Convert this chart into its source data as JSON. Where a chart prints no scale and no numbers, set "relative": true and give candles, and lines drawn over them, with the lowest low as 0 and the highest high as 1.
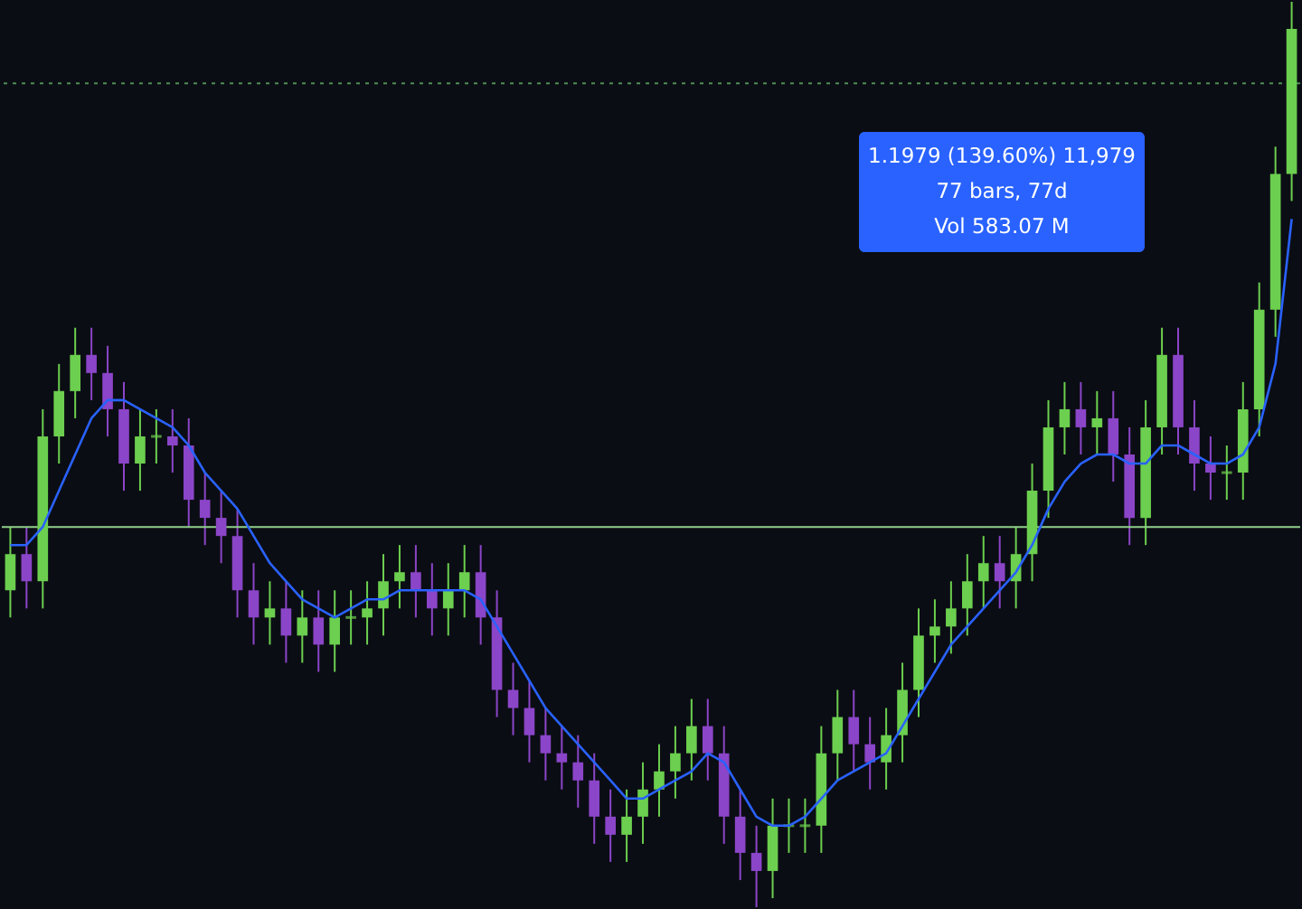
{
  "chart_data": {
    "type": "candlestick",
    "relative": true,
    "categories": [
      null,
      null,
      null,
      null,
      null,
      null,
      null,
      null,
      null,
      null,
      null,
      null,
      null,
      null,
      null,
      null,
      null,
      null,
      null,
      null,
      null,
      null,
      null,
      null,
      null,
      null,
      null,
      null,
      null,
      null,
      null,
      null,
      null,
      null,
      null,
      null,
      null,
      null,
      null,
      null,
      null,
      null,
      null,
      null,
      null,
      null,
      null,
      null,
      null,
      null,
      null,
      null,
      null,
      null,
      null,
      null,
      null,
      null,
      null,
      null,
      null,
      null,
      null,
      null,
      null,
      null,
      null,
      null,
      null,
      null,
      null,
      null,
      null,
      null,
      null,
      null,
      null,
      null,
      null,
      null
    ],
    "ohlc": [
      [
        0.35,
        0.42,
        0.32,
        0.39
      ],
      [
        0.39,
        0.42,
        0.33,
        0.36
      ],
      [
        0.36,
        0.55,
        0.33,
        0.52
      ],
      [
        0.52,
        0.6,
        0.49,
        0.57
      ],
      [
        0.57,
        0.64,
        0.54,
        0.61
      ],
      [
        0.61,
        0.64,
        0.56,
        0.59
      ],
      [
        0.59,
        0.62,
        0.52,
        0.55
      ],
      [
        0.55,
        0.58,
        0.46,
        0.49
      ],
      [
        0.49,
        0.55,
        0.46,
        0.52
      ],
      [
        0.52,
        0.55,
        0.49,
        0.52
      ],
      [
        0.52,
        0.55,
        0.48,
        0.51
      ],
      [
        0.51,
        0.54,
        0.42,
        0.45
      ],
      [
        0.45,
        0.48,
        0.4,
        0.43
      ],
      [
        0.43,
        0.46,
        0.38,
        0.41
      ],
      [
        0.41,
        0.44,
        0.32,
        0.35
      ],
      [
        0.35,
        0.38,
        0.29,
        0.32
      ],
      [
        0.32,
        0.36,
        0.29,
        0.33
      ],
      [
        0.33,
        0.36,
        0.27,
        0.3
      ],
      [
        0.3,
        0.35,
        0.27,
        0.32
      ],
      [
        0.32,
        0.35,
        0.26,
        0.29
      ],
      [
        0.29,
        0.35,
        0.26,
        0.32
      ],
      [
        0.32,
        0.35,
        0.29,
        0.32
      ],
      [
        0.32,
        0.36,
        0.29,
        0.33
      ],
      [
        0.33,
        0.39,
        0.3,
        0.36
      ],
      [
        0.36,
        0.4,
        0.33,
        0.37
      ],
      [
        0.37,
        0.4,
        0.32,
        0.35
      ],
      [
        0.35,
        0.38,
        0.3,
        0.33
      ],
      [
        0.33,
        0.38,
        0.3,
        0.35
      ],
      [
        0.35,
        0.4,
        0.32,
        0.37
      ],
      [
        0.37,
        0.4,
        0.29,
        0.32
      ],
      [
        0.32,
        0.35,
        0.21,
        0.24
      ],
      [
        0.24,
        0.27,
        0.19,
        0.22
      ],
      [
        0.22,
        0.25,
        0.16,
        0.19
      ],
      [
        0.19,
        0.22,
        0.14,
        0.17
      ],
      [
        0.17,
        0.2,
        0.13,
        0.16
      ],
      [
        0.16,
        0.19,
        0.11,
        0.14
      ],
      [
        0.14,
        0.17,
        0.07,
        0.1
      ],
      [
        0.1,
        0.13,
        0.05,
        0.08
      ],
      [
        0.08,
        0.13,
        0.05,
        0.1
      ],
      [
        0.1,
        0.16,
        0.07,
        0.13
      ],
      [
        0.13,
        0.18,
        0.1,
        0.15
      ],
      [
        0.15,
        0.2,
        0.12,
        0.17
      ],
      [
        0.17,
        0.23,
        0.14,
        0.2
      ],
      [
        0.2,
        0.23,
        0.14,
        0.17
      ],
      [
        0.17,
        0.2,
        0.07,
        0.1
      ],
      [
        0.1,
        0.13,
        0.03,
        0.06
      ],
      [
        0.06,
        0.09,
        0.0,
        0.04
      ],
      [
        0.04,
        0.12,
        0.01,
        0.09
      ],
      [
        0.09,
        0.12,
        0.06,
        0.09
      ],
      [
        0.09,
        0.12,
        0.06,
        0.09
      ],
      [
        0.09,
        0.2,
        0.06,
        0.17
      ],
      [
        0.17,
        0.24,
        0.14,
        0.21
      ],
      [
        0.21,
        0.24,
        0.15,
        0.18
      ],
      [
        0.18,
        0.21,
        0.13,
        0.16
      ],
      [
        0.16,
        0.22,
        0.13,
        0.19
      ],
      [
        0.19,
        0.27,
        0.16,
        0.24
      ],
      [
        0.24,
        0.33,
        0.21,
        0.3
      ],
      [
        0.3,
        0.34,
        0.27,
        0.31
      ],
      [
        0.31,
        0.36,
        0.28,
        0.33
      ],
      [
        0.33,
        0.39,
        0.3,
        0.36
      ],
      [
        0.36,
        0.41,
        0.33,
        0.38
      ],
      [
        0.38,
        0.41,
        0.33,
        0.36
      ],
      [
        0.36,
        0.42,
        0.33,
        0.39
      ],
      [
        0.39,
        0.49,
        0.36,
        0.46
      ],
      [
        0.46,
        0.56,
        0.43,
        0.53
      ],
      [
        0.53,
        0.58,
        0.5,
        0.55
      ],
      [
        0.55,
        0.58,
        0.5,
        0.53
      ],
      [
        0.53,
        0.57,
        0.5,
        0.54
      ],
      [
        0.54,
        0.57,
        0.47,
        0.5
      ],
      [
        0.5,
        0.53,
        0.4,
        0.43
      ],
      [
        0.43,
        0.56,
        0.4,
        0.53
      ],
      [
        0.53,
        0.64,
        0.5,
        0.61
      ],
      [
        0.61,
        0.64,
        0.5,
        0.53
      ],
      [
        0.53,
        0.56,
        0.46,
        0.49
      ],
      [
        0.49,
        0.52,
        0.45,
        0.48
      ],
      [
        0.48,
        0.51,
        0.45,
        0.48
      ],
      [
        0.48,
        0.58,
        0.45,
        0.55
      ],
      [
        0.55,
        0.69,
        0.52,
        0.66
      ],
      [
        0.66,
        0.84,
        0.63,
        0.81
      ],
      [
        0.81,
        1.0,
        0.78,
        0.97
      ]
    ],
    "colors": [
      "#6ccf4f",
      "#8b45c8",
      "#6ccf4f",
      "#6ccf4f",
      "#6ccf4f",
      "#8b45c8",
      "#8b45c8",
      "#8b45c8",
      "#6ccf4f",
      "#6ccf4f",
      "#8b45c8",
      "#8b45c8",
      "#8b45c8",
      "#8b45c8",
      "#8b45c8",
      "#8b45c8",
      "#6ccf4f",
      "#8b45c8",
      "#6ccf4f",
      "#8b45c8",
      "#6ccf4f",
      "#6ccf4f",
      "#6ccf4f",
      "#6ccf4f",
      "#6ccf4f",
      "#8b45c8",
      "#8b45c8",
      "#6ccf4f",
      "#6ccf4f",
      "#8b45c8",
      "#8b45c8",
      "#8b45c8",
      "#8b45c8",
      "#8b45c8",
      "#8b45c8",
      "#8b45c8",
      "#8b45c8",
      "#8b45c8",
      "#6ccf4f",
      "#6ccf4f",
      "#6ccf4f",
      "#6ccf4f",
      "#6ccf4f",
      "#8b45c8",
      "#8b45c8",
      "#8b45c8",
      "#8b45c8",
      "#6ccf4f",
      "#6ccf4f",
      "#6ccf4f",
      "#6ccf4f",
      "#6ccf4f",
      "#8b45c8",
      "#8b45c8",
      "#6ccf4f",
      "#6ccf4f",
      "#6ccf4f",
      "#6ccf4f",
      "#6ccf4f",
      "#6ccf4f",
      "#6ccf4f",
      "#8b45c8",
      "#6ccf4f",
      "#6ccf4f",
      "#6ccf4f",
      "#6ccf4f",
      "#8b45c8",
      "#6ccf4f",
      "#8b45c8",
      "#8b45c8",
      "#6ccf4f",
      "#6ccf4f",
      "#8b45c8",
      "#8b45c8",
      "#8b45c8",
      "#6ccf4f",
      "#6ccf4f",
      "#6ccf4f",
      "#6ccf4f",
      "#6ccf4f"
    ],
    "series": [
      {
        "type": "line",
        "color": "#2962ff",
        "values": [
          0.4,
          0.4,
          0.42,
          0.46,
          0.5,
          0.54,
          0.56,
          0.56,
          0.55,
          0.54,
          0.53,
          0.51,
          0.48,
          0.46,
          0.44,
          0.41,
          0.38,
          0.36,
          0.34,
          0.33,
          0.32,
          0.33,
          0.34,
          0.34,
          0.35,
          0.35,
          0.35,
          0.35,
          0.35,
          0.34,
          0.31,
          0.28,
          0.25,
          0.22,
          0.2,
          0.18,
          0.16,
          0.14,
          0.12,
          0.12,
          0.13,
          0.14,
          0.15,
          0.17,
          0.16,
          0.13,
          0.1,
          0.09,
          0.09,
          0.1,
          0.12,
          0.14,
          0.15,
          0.16,
          0.17,
          0.2,
          0.23,
          0.26,
          0.29,
          0.31,
          0.33,
          0.35,
          0.37,
          0.4,
          0.44,
          0.47,
          0.49,
          0.5,
          0.5,
          0.49,
          0.49,
          0.51,
          0.51,
          0.5,
          0.49,
          0.49,
          0.5,
          0.53,
          0.6,
          0.76
        ]
      }
    ],
    "ref_lines": [
      {
        "axis": "y",
        "value": 0.42,
        "color": "#8fd18a",
        "line_style": "solid"
      },
      {
        "axis": "y",
        "value": 0.91,
        "color": "#4f8f55",
        "line_style": "dotted"
      }
    ],
    "annotations": [
      "1.1979 (139.60%) 11,979",
      "77 bars, 77d",
      "Vol 583.07 M"
    ]
  }
}
